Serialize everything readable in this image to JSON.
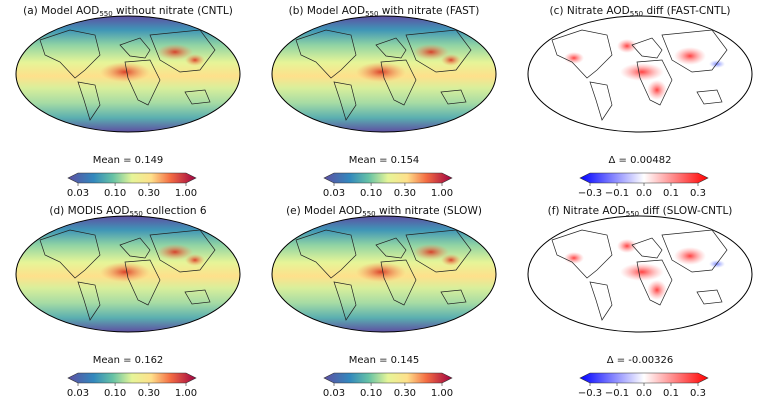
{
  "panels": [
    {
      "title": {
        "pre": "(a) Model AOD",
        "sub": "550",
        "post": " without nitrate (CNTL)"
      },
      "stat": "Mean = 0.149",
      "colorbar": {
        "scale": "log",
        "xlim": [
          0.03,
          1
        ],
        "ticks": [
          0.03,
          {
            "value": 0.1,
            "label": "0.10"
          },
          {
            "value": 0.3,
            "label": "0.30"
          },
          {
            "value": 1,
            "label": "1.00"
          }
        ]
      }
    },
    {
      "title": {
        "pre": "(b) Model AOD",
        "sub": "550",
        "post": " with nitrate (FAST)"
      },
      "stat": "Mean = 0.154",
      "colorbar": {
        "scale": "log",
        "xlim": [
          0.03,
          1
        ],
        "ticks": [
          0.03,
          {
            "value": 0.1,
            "label": "0.10"
          },
          {
            "value": 0.3,
            "label": "0.30"
          },
          {
            "value": 1,
            "label": "1.00"
          }
        ]
      }
    },
    {
      "title": {
        "pre": "(c) Nitrate AOD",
        "sub": "550",
        "post": " diff (FAST-CNTL)"
      },
      "stat": "Δ = 0.00482",
      "colorbar": {
        "scale": "symlog",
        "xlim": [
          -0.3,
          0.3
        ],
        "ticks": [
          {
            "value": -0.3,
            "label": "−0.3"
          },
          {
            "value": -0.1,
            "label": "−0.1"
          },
          {
            "value": 0,
            "label": "0.0"
          },
          0.1,
          0.3
        ]
      }
    },
    {
      "title": {
        "pre": "(d) MODIS AOD",
        "sub": "550",
        "post": " collection 6"
      },
      "stat": "Mean = 0.162",
      "colorbar": {
        "scale": "log",
        "xlim": [
          0.03,
          1
        ],
        "ticks": [
          0.03,
          {
            "value": 0.1,
            "label": "0.10"
          },
          {
            "value": 0.3,
            "label": "0.30"
          },
          {
            "value": 1,
            "label": "1.00"
          }
        ]
      }
    },
    {
      "title": {
        "pre": "(e) Model AOD",
        "sub": "550",
        "post": " with nitrate (SLOW)"
      },
      "stat": "Mean = 0.145",
      "colorbar": {
        "scale": "log",
        "xlim": [
          0.03,
          1
        ],
        "ticks": [
          0.03,
          {
            "value": 0.1,
            "label": "0.10"
          },
          {
            "value": 0.3,
            "label": "0.30"
          },
          {
            "value": 1,
            "label": "1.00"
          }
        ]
      }
    },
    {
      "title": {
        "pre": "(f) Nitrate AOD",
        "sub": "550",
        "post": " diff (SLOW-CNTL)"
      },
      "stat": "Δ = -0.00326",
      "colorbar": {
        "scale": "symlog",
        "xlim": [
          -0.3,
          0.3
        ],
        "ticks": [
          {
            "value": -0.3,
            "label": "−0.3"
          },
          {
            "value": -0.1,
            "label": "−0.1"
          },
          {
            "value": 0,
            "label": "0.0"
          },
          0.1,
          0.3
        ]
      }
    }
  ]
}
